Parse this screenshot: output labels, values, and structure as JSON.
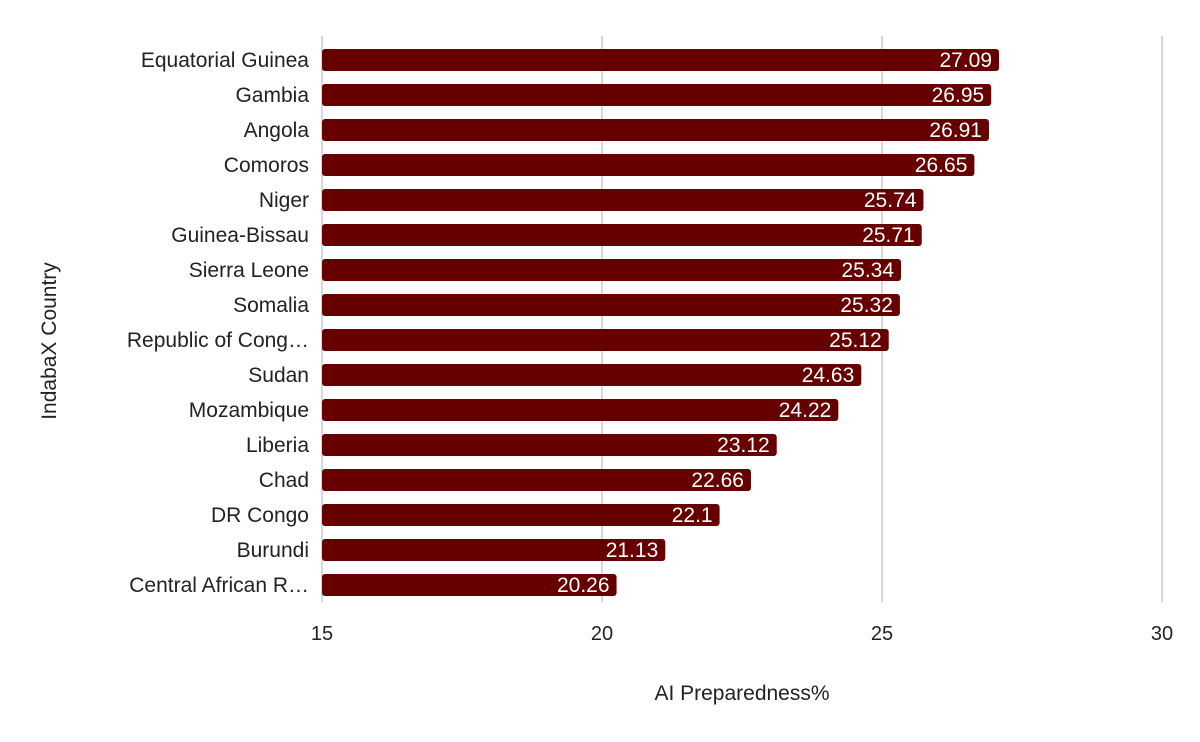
{
  "chart_data": {
    "type": "bar",
    "orientation": "horizontal",
    "title": "",
    "xlabel": "AI Preparedness%",
    "ylabel": "IndabaX Country",
    "xlim": [
      15,
      30
    ],
    "xticks": [
      "15",
      "20",
      "25",
      "30"
    ],
    "grid": true,
    "bar_color": "#660000",
    "categories": [
      "Equatorial Guinea",
      "Gambia",
      "Angola",
      "Comoros",
      "Niger",
      "Guinea-Bissau",
      "Sierra Leone",
      "Somalia",
      "Republic of Cong…",
      "Sudan",
      "Mozambique",
      "Liberia",
      "Chad",
      "DR Congo",
      "Burundi",
      "Central African R…"
    ],
    "values": [
      27.09,
      26.95,
      26.91,
      26.65,
      25.74,
      25.71,
      25.34,
      25.32,
      25.12,
      24.63,
      24.22,
      23.12,
      22.66,
      22.1,
      21.13,
      20.26
    ],
    "value_labels": [
      "27.09",
      "26.95",
      "26.91",
      "26.65",
      "25.74",
      "25.71",
      "25.34",
      "25.32",
      "25.12",
      "24.63",
      "24.22",
      "23.12",
      "22.66",
      "22.1",
      "21.13",
      "20.26"
    ]
  }
}
